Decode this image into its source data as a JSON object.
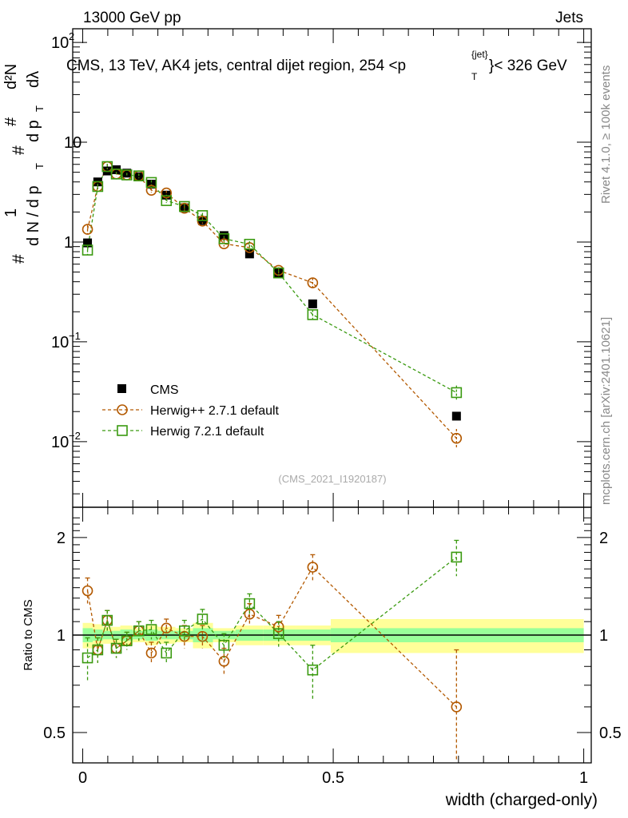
{
  "header": {
    "left": "13000 GeV pp",
    "right": "Jets"
  },
  "side": {
    "rivet": "Rivet 4.1.0, ≥ 100k events",
    "mcplots": "mcplots.cern.ch [arXiv:2401.10621]"
  },
  "chart_data": {
    "type": "scatter",
    "title": "CMS, 13 TeV, AK4 jets, central dijet region, 254 < p_T^{jet} < 326 GeV",
    "title_parts": {
      "main": "CMS, 13 TeV, AK4 jets, central dijet region, 254 <p",
      "sub": "T",
      "sup": "{jet}",
      "end": "}< 326 GeV"
    },
    "ylabel": "1/(dN/dp_T) d²N/(dp_T dλ)",
    "ylabel_parts": {
      "a": "1",
      "b": "d N / d p",
      "c": "d²N",
      "d": "d p",
      "e": "dλ",
      "t": "T",
      "hash": "#"
    },
    "xlabel": "width (charged-only)",
    "ratio_ylabel": "Ratio to CMS",
    "analysis": "(CMS_2021_I1920187)",
    "xlim": [
      -0.02,
      1.015
    ],
    "ylim_log": [
      0.0022,
      137
    ],
    "ratio_ylim": [
      0.403,
      2.48
    ],
    "x_ticks": [
      "0",
      "0.5",
      "1"
    ],
    "x_tick_values": [
      0,
      0.5,
      1
    ],
    "y_ticks": [
      {
        "v": 100,
        "b": "10",
        "e": "2"
      },
      {
        "v": 10,
        "b": "10",
        "e": ""
      },
      {
        "v": 1,
        "b": "1",
        "e": ""
      },
      {
        "v": 0.1,
        "b": "10",
        "e": "−1"
      },
      {
        "v": 0.01,
        "b": "10",
        "e": "−2"
      }
    ],
    "ratio_ticks": [
      {
        "v": 2,
        "l": "2"
      },
      {
        "v": 1,
        "l": "1"
      },
      {
        "v": 0.5,
        "l": "0.5"
      }
    ],
    "bin_edges": [
      0,
      0.02,
      0.04,
      0.06,
      0.075,
      0.1,
      0.125,
      0.15,
      0.185,
      0.22,
      0.26,
      0.305,
      0.36,
      0.425,
      0.495,
      1.0
    ],
    "x": [
      0.0096,
      0.03,
      0.049,
      0.067,
      0.088,
      0.112,
      0.137,
      0.167,
      0.203,
      0.239,
      0.282,
      0.333,
      0.391,
      0.459,
      0.746
    ],
    "band_yellow": [
      0.09,
      0.08,
      0.06,
      0.06,
      0.07,
      0.05,
      0.07,
      0.06,
      0.05,
      0.09,
      0.05,
      0.07,
      0.07,
      0.07,
      0.12
    ],
    "band_green": [
      0.05,
      0.04,
      0.03,
      0.03,
      0.04,
      0.03,
      0.04,
      0.03,
      0.03,
      0.05,
      0.03,
      0.04,
      0.04,
      0.04,
      0.05
    ],
    "series": [
      {
        "name": "CMS",
        "color": "#000000",
        "marker": "filled-square",
        "values": [
          0.98,
          4.0,
          5.15,
          5.3,
          4.9,
          4.5,
          3.8,
          2.95,
          2.2,
          1.64,
          1.16,
          0.76,
          0.49,
          0.24,
          0.018
        ]
      },
      {
        "name": "Herwig++ 2.7.1 default",
        "color": "#b35900",
        "marker": "open-circle",
        "values": [
          1.34,
          3.6,
          5.7,
          4.8,
          4.7,
          4.6,
          3.3,
          3.1,
          2.18,
          1.62,
          0.96,
          0.88,
          0.52,
          0.39,
          0.0108
        ],
        "ratio": [
          1.37,
          0.9,
          1.11,
          0.91,
          0.96,
          1.03,
          0.88,
          1.05,
          0.99,
          0.99,
          0.83,
          1.16,
          1.06,
          1.62,
          0.6
        ],
        "ratio_err": [
          0.13,
          0.08,
          0.08,
          0.06,
          0.06,
          0.07,
          0.07,
          0.07,
          0.08,
          0.08,
          0.08,
          0.09,
          0.09,
          0.15,
          0.3
        ]
      },
      {
        "name": "Herwig 7.2.1 default",
        "color": "#3a9a10",
        "marker": "open-square",
        "values": [
          0.83,
          3.6,
          5.7,
          4.8,
          4.7,
          4.6,
          3.95,
          2.6,
          2.27,
          1.84,
          1.08,
          0.95,
          0.49,
          0.187,
          0.031
        ],
        "ratio": [
          0.85,
          0.9,
          1.11,
          0.91,
          0.96,
          1.03,
          1.04,
          0.88,
          1.03,
          1.12,
          0.93,
          1.25,
          1.01,
          0.78,
          1.74
        ],
        "ratio_err": [
          0.13,
          0.08,
          0.08,
          0.06,
          0.06,
          0.07,
          0.07,
          0.07,
          0.08,
          0.08,
          0.08,
          0.09,
          0.09,
          0.15,
          0.22
        ]
      }
    ],
    "legend_position": "bottom-left"
  }
}
